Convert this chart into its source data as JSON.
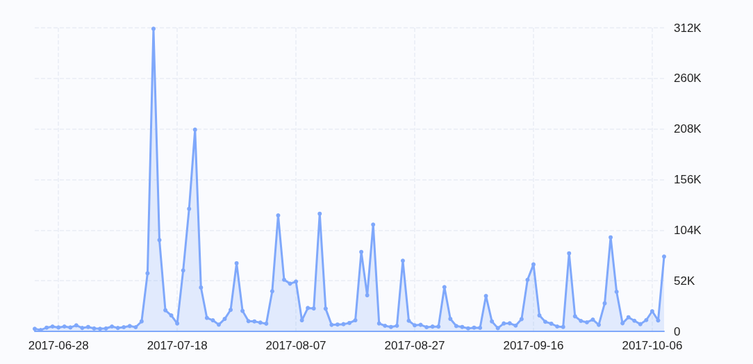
{
  "chart_data": {
    "type": "area",
    "color": "#7fa8fb",
    "marker": "circle",
    "grid": true,
    "line_style": "solid",
    "x": [
      "2017-06-24",
      "2017-06-25",
      "2017-06-26",
      "2017-06-27",
      "2017-06-28",
      "2017-06-29",
      "2017-06-30",
      "2017-07-01",
      "2017-07-02",
      "2017-07-03",
      "2017-07-04",
      "2017-07-05",
      "2017-07-06",
      "2017-07-07",
      "2017-07-08",
      "2017-07-09",
      "2017-07-10",
      "2017-07-11",
      "2017-07-12",
      "2017-07-13",
      "2017-07-14",
      "2017-07-15",
      "2017-07-16",
      "2017-07-17",
      "2017-07-18",
      "2017-07-19",
      "2017-07-20",
      "2017-07-21",
      "2017-07-22",
      "2017-07-23",
      "2017-07-24",
      "2017-07-25",
      "2017-07-26",
      "2017-07-27",
      "2017-07-28",
      "2017-07-29",
      "2017-07-30",
      "2017-07-31",
      "2017-08-01",
      "2017-08-02",
      "2017-08-03",
      "2017-08-04",
      "2017-08-05",
      "2017-08-06",
      "2017-08-07",
      "2017-08-08",
      "2017-08-09",
      "2017-08-10",
      "2017-08-11",
      "2017-08-12",
      "2017-08-13",
      "2017-08-14",
      "2017-08-15",
      "2017-08-16",
      "2017-08-17",
      "2017-08-18",
      "2017-08-19",
      "2017-08-20",
      "2017-08-21",
      "2017-08-22",
      "2017-08-23",
      "2017-08-24",
      "2017-08-25",
      "2017-08-26",
      "2017-08-27",
      "2017-08-28",
      "2017-08-29",
      "2017-08-30",
      "2017-08-31",
      "2017-09-01",
      "2017-09-02",
      "2017-09-03",
      "2017-09-04",
      "2017-09-05",
      "2017-09-06",
      "2017-09-07",
      "2017-09-08",
      "2017-09-09",
      "2017-09-10",
      "2017-09-11",
      "2017-09-12",
      "2017-09-13",
      "2017-09-14",
      "2017-09-15",
      "2017-09-16",
      "2017-09-17",
      "2017-09-18",
      "2017-09-19",
      "2017-09-20",
      "2017-09-21",
      "2017-09-22",
      "2017-09-23",
      "2017-09-24",
      "2017-09-25",
      "2017-09-26",
      "2017-09-27",
      "2017-09-28",
      "2017-09-29",
      "2017-09-30",
      "2017-10-01",
      "2017-10-02",
      "2017-10-03",
      "2017-10-04",
      "2017-10-05",
      "2017-10-06",
      "2017-10-07",
      "2017-10-08"
    ],
    "values": [
      2600,
      1400,
      3800,
      5000,
      4000,
      5000,
      4000,
      6200,
      3500,
      4500,
      3000,
      2600,
      3000,
      5000,
      3500,
      4300,
      5500,
      4300,
      10200,
      59700,
      311000,
      93800,
      21700,
      16400,
      8100,
      62600,
      125900,
      207300,
      45000,
      13800,
      11400,
      6900,
      12800,
      22100,
      70000,
      21000,
      10500,
      10200,
      9000,
      7900,
      41200,
      119200,
      53000,
      49000,
      51200,
      11400,
      24000,
      23500,
      120900,
      23300,
      6700,
      7000,
      7400,
      8600,
      11400,
      81600,
      37100,
      109700,
      8100,
      5700,
      4500,
      5700,
      72600,
      10900,
      6200,
      6700,
      4300,
      4900,
      4900,
      45500,
      12800,
      5500,
      4500,
      3100,
      3800,
      3600,
      36400,
      10200,
      3300,
      8100,
      8300,
      5900,
      12600,
      53000,
      68800,
      16400,
      9800,
      7900,
      5000,
      4500,
      80200,
      15400,
      10700,
      9300,
      12100,
      6700,
      28800,
      96600,
      40700,
      8300,
      14500,
      10900,
      7400,
      11600,
      20700,
      11200,
      76900
    ],
    "xlim": [
      "2017-06-24",
      "2017-10-08"
    ],
    "xticks": [
      "2017-06-28",
      "2017-07-18",
      "2017-08-07",
      "2017-08-27",
      "2017-09-16",
      "2017-10-06"
    ],
    "ylim": [
      0,
      312000
    ],
    "yticks": [
      {
        "value": 0,
        "label": "0"
      },
      {
        "value": 52000,
        "label": "52K"
      },
      {
        "value": 104000,
        "label": "104K"
      },
      {
        "value": 156000,
        "label": "156K"
      },
      {
        "value": 208000,
        "label": "208K"
      },
      {
        "value": 260000,
        "label": "260K"
      },
      {
        "value": 312000,
        "label": "312K"
      }
    ]
  }
}
